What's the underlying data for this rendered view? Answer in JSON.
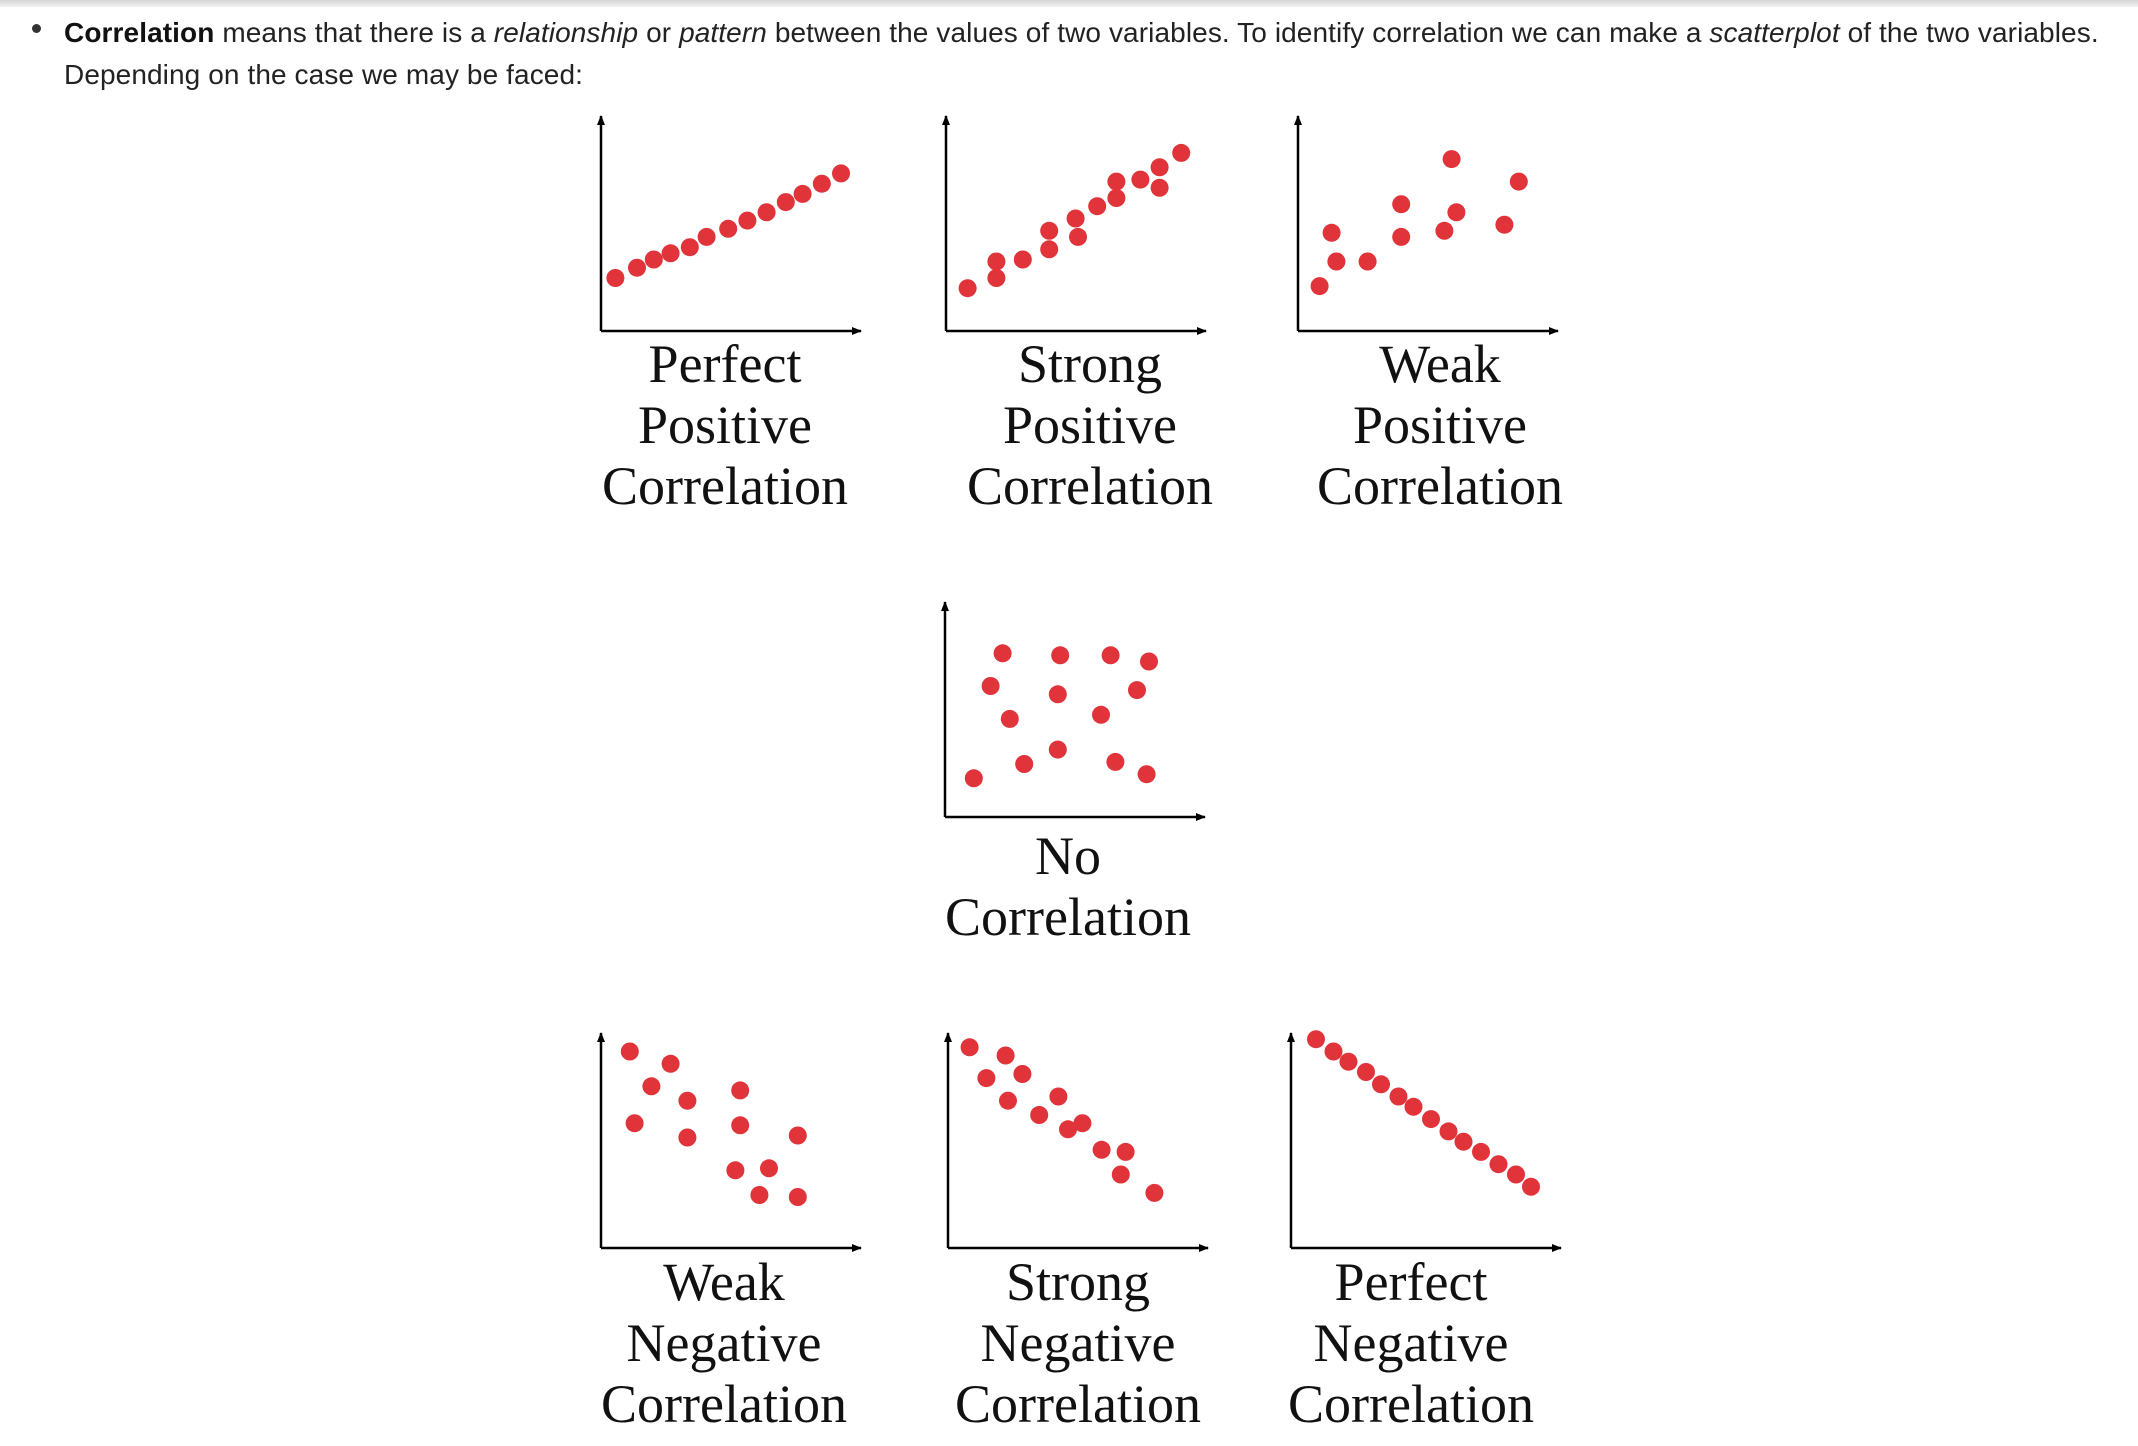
{
  "intro": {
    "term": "Correlation",
    "text1": " means that there is a ",
    "em1": "relationship",
    "text2": " or ",
    "em2": "pattern",
    "text3": " between the values of two variables. To identify correlation we can make a ",
    "em3": "scatterplot",
    "text4": " of the two variables. Depending on the case we may be faced:"
  },
  "colors": {
    "point": "#e0333a",
    "axis": "#000000"
  },
  "plots": [
    {
      "name": "perfect-positive",
      "label": [
        "Perfect",
        "Positive",
        "Correlation"
      ],
      "points": [
        [
          0.06,
          0.79
        ],
        [
          0.15,
          0.74
        ],
        [
          0.22,
          0.7
        ],
        [
          0.29,
          0.67
        ],
        [
          0.37,
          0.64
        ],
        [
          0.44,
          0.59
        ],
        [
          0.53,
          0.55
        ],
        [
          0.61,
          0.51
        ],
        [
          0.69,
          0.47
        ],
        [
          0.77,
          0.42
        ],
        [
          0.84,
          0.38
        ],
        [
          0.92,
          0.33
        ],
        [
          1.0,
          0.28
        ]
      ]
    },
    {
      "name": "strong-positive",
      "label": [
        "Strong",
        "Positive",
        "Correlation"
      ],
      "points": [
        [
          0.09,
          0.84
        ],
        [
          0.21,
          0.79
        ],
        [
          0.21,
          0.71
        ],
        [
          0.32,
          0.7
        ],
        [
          0.43,
          0.65
        ],
        [
          0.43,
          0.56
        ],
        [
          0.55,
          0.59
        ],
        [
          0.54,
          0.5
        ],
        [
          0.63,
          0.44
        ],
        [
          0.71,
          0.4
        ],
        [
          0.71,
          0.32
        ],
        [
          0.81,
          0.31
        ],
        [
          0.89,
          0.25
        ],
        [
          0.89,
          0.35
        ],
        [
          0.98,
          0.18
        ]
      ]
    },
    {
      "name": "weak-positive",
      "label": [
        "Weak",
        "Positive",
        "Correlation"
      ],
      "points": [
        [
          0.09,
          0.83
        ],
        [
          0.14,
          0.57
        ],
        [
          0.16,
          0.71
        ],
        [
          0.29,
          0.71
        ],
        [
          0.43,
          0.43
        ],
        [
          0.43,
          0.59
        ],
        [
          0.64,
          0.21
        ],
        [
          0.66,
          0.47
        ],
        [
          0.61,
          0.56
        ],
        [
          0.86,
          0.53
        ],
        [
          0.92,
          0.32
        ]
      ]
    },
    {
      "name": "no-correlation",
      "label": [
        "No",
        "Correlation"
      ],
      "points": [
        [
          0.12,
          0.86
        ],
        [
          0.24,
          0.25
        ],
        [
          0.19,
          0.41
        ],
        [
          0.27,
          0.57
        ],
        [
          0.33,
          0.79
        ],
        [
          0.48,
          0.26
        ],
        [
          0.47,
          0.45
        ],
        [
          0.47,
          0.72
        ],
        [
          0.69,
          0.26
        ],
        [
          0.65,
          0.55
        ],
        [
          0.71,
          0.78
        ],
        [
          0.85,
          0.29
        ],
        [
          0.8,
          0.43
        ],
        [
          0.84,
          0.84
        ]
      ]
    },
    {
      "name": "weak-negative",
      "label": [
        "Weak",
        "Negative",
        "Correlation"
      ],
      "points": [
        [
          0.12,
          0.09
        ],
        [
          0.14,
          0.44
        ],
        [
          0.21,
          0.26
        ],
        [
          0.29,
          0.15
        ],
        [
          0.36,
          0.33
        ],
        [
          0.36,
          0.51
        ],
        [
          0.58,
          0.28
        ],
        [
          0.58,
          0.45
        ],
        [
          0.56,
          0.67
        ],
        [
          0.7,
          0.66
        ],
        [
          0.82,
          0.5
        ],
        [
          0.66,
          0.79
        ],
        [
          0.82,
          0.8
        ]
      ]
    },
    {
      "name": "strong-negative",
      "label": [
        "Strong",
        "Negative",
        "Correlation"
      ],
      "points": [
        [
          0.09,
          0.07
        ],
        [
          0.16,
          0.22
        ],
        [
          0.24,
          0.11
        ],
        [
          0.31,
          0.2
        ],
        [
          0.25,
          0.33
        ],
        [
          0.38,
          0.4
        ],
        [
          0.46,
          0.31
        ],
        [
          0.5,
          0.47
        ],
        [
          0.56,
          0.44
        ],
        [
          0.64,
          0.57
        ],
        [
          0.74,
          0.58
        ],
        [
          0.72,
          0.69
        ],
        [
          0.86,
          0.78
        ]
      ]
    },
    {
      "name": "perfect-negative",
      "label": [
        "Perfect",
        "Negative",
        "Correlation"
      ],
      "points": [
        [
          0.1,
          0.03
        ],
        [
          0.17,
          0.09
        ],
        [
          0.23,
          0.14
        ],
        [
          0.3,
          0.19
        ],
        [
          0.36,
          0.25
        ],
        [
          0.43,
          0.31
        ],
        [
          0.49,
          0.36
        ],
        [
          0.56,
          0.42
        ],
        [
          0.63,
          0.48
        ],
        [
          0.69,
          0.53
        ],
        [
          0.76,
          0.58
        ],
        [
          0.83,
          0.64
        ],
        [
          0.9,
          0.69
        ],
        [
          0.96,
          0.75
        ]
      ]
    }
  ]
}
